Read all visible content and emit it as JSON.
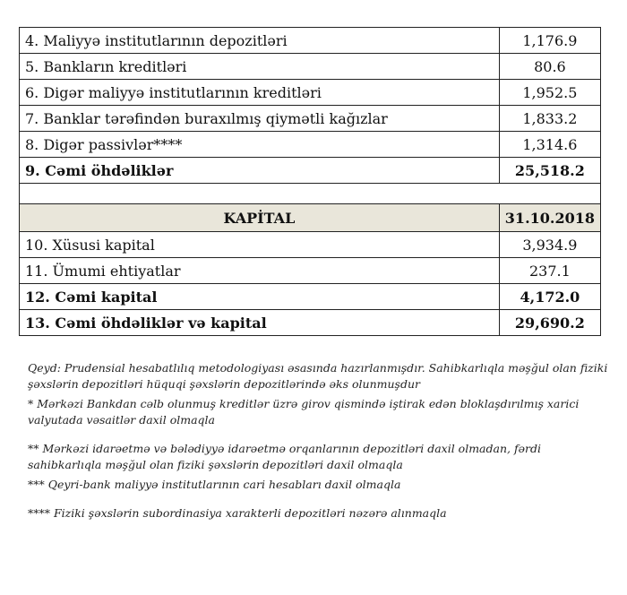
{
  "liabilities": [
    {
      "label": "4. Maliyyə institutlarının  depozitləri",
      "value": "1,176.9"
    },
    {
      "label": "5. Bankların kreditləri",
      "value": "80.6"
    },
    {
      "label": "6. Digər maliyyə institutlarının kreditləri",
      "value": "1,952.5"
    },
    {
      "label": "7. Banklar tərəfindən buraxılmış qiymətli kağızlar",
      "value": "1,833.2"
    },
    {
      "label": "8. Digər passivlər****",
      "value": "1,314.6"
    }
  ],
  "liabilities_total": {
    "label": "9. Cəmi öhdəliklər",
    "value": "25,518.2"
  },
  "capital_header": {
    "label": "KAPİTAL",
    "date": "31.10.2018"
  },
  "capital": [
    {
      "label": "10. Xüsusi kapital",
      "value": "3,934.9"
    },
    {
      "label": "11. Ümumi ehtiyatlar",
      "value": "237.1"
    }
  ],
  "capital_total": {
    "label": "12. Cəmi kapital",
    "value": "4,172.0"
  },
  "grand_total": {
    "label": "13. Cəmi öhdəliklər və kapital",
    "value": "29,690.2"
  },
  "notes": [
    "Qeyd: Prudensial hesabatlılıq metodologiyası əsasında hazırlanmışdır. Sahibkarlıqla məşğul olan fiziki şəxslərin depozitləri hüquqi şəxslərin depozitlərində əks olunmuşdur",
    "* Mərkəzi Bankdan cəlb olunmuş kreditlər üzrə girov qismində iştirak edən bloklaşdırılmış xarici valyutada vəsaitlər daxil olmaqla",
    "** Mərkəzi idarəetmə və bələdiyyə idarəetmə orqanlarının depozitləri daxil olmadan, fərdi sahibkarlıqla məşğul olan fiziki şəxslərin depozitləri daxil olmaqla",
    "*** Qeyri-bank maliyyə institutlarının cari hesabları daxil olmaqla",
    "**** Fiziki şəxslərin subordinasiya xarakterli depozitləri nəzərə alınmaqla"
  ]
}
